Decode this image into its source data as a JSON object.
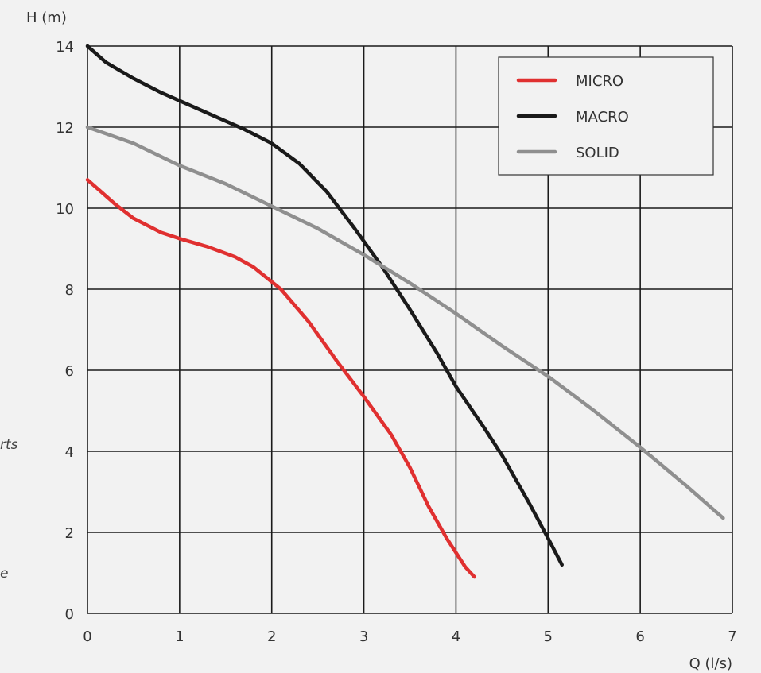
{
  "page_fragments": {
    "line1": "rts",
    "line2": "e"
  },
  "colors": {
    "background": "#f2f2f2",
    "grid": "#1a1a1a",
    "text": "#333333"
  },
  "chart_data": {
    "type": "line",
    "title": "",
    "xlabel": "Q (l/s)",
    "ylabel": "H (m)",
    "xlim": [
      0,
      7
    ],
    "ylim": [
      0,
      14
    ],
    "x_ticks": [
      0,
      1,
      2,
      3,
      4,
      5,
      6,
      7
    ],
    "y_ticks": [
      0,
      2,
      4,
      6,
      8,
      10,
      12,
      14
    ],
    "grid": true,
    "legend_position": "top-right",
    "series": [
      {
        "name": "MICRO",
        "color": "#e03030",
        "x": [
          0,
          0.3,
          0.5,
          0.8,
          1.0,
          1.3,
          1.6,
          1.8,
          2.1,
          2.4,
          2.7,
          3.0,
          3.3,
          3.5,
          3.7,
          3.9,
          4.1,
          4.2
        ],
        "y": [
          10.7,
          10.1,
          9.75,
          9.4,
          9.25,
          9.05,
          8.8,
          8.55,
          8.0,
          7.2,
          6.25,
          5.35,
          4.4,
          3.6,
          2.65,
          1.85,
          1.15,
          0.9
        ]
      },
      {
        "name": "MACRO",
        "color": "#1a1a1a",
        "x": [
          0,
          0.2,
          0.5,
          0.8,
          1.1,
          1.4,
          1.7,
          2.0,
          2.3,
          2.6,
          2.9,
          3.2,
          3.5,
          3.8,
          4.0,
          4.3,
          4.5,
          4.8,
          5.0,
          5.15
        ],
        "y": [
          14.0,
          13.6,
          13.2,
          12.85,
          12.55,
          12.25,
          11.95,
          11.6,
          11.1,
          10.4,
          9.5,
          8.55,
          7.5,
          6.4,
          5.6,
          4.6,
          3.9,
          2.7,
          1.85,
          1.2
        ]
      },
      {
        "name": "SOLID",
        "color": "#8f8f8f",
        "x": [
          0,
          0.5,
          1.0,
          1.5,
          2.0,
          2.5,
          3.0,
          3.5,
          4.0,
          4.5,
          5.0,
          5.5,
          6.0,
          6.5,
          6.9
        ],
        "y": [
          12.0,
          11.6,
          11.05,
          10.6,
          10.05,
          9.5,
          8.85,
          8.15,
          7.4,
          6.6,
          5.85,
          5.0,
          4.1,
          3.15,
          2.35
        ]
      }
    ]
  }
}
